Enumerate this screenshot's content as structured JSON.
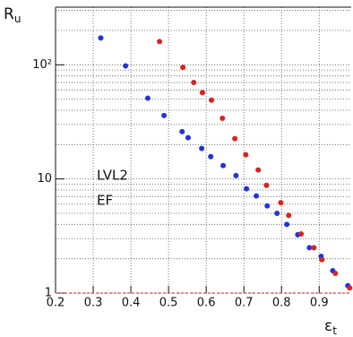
{
  "chart_data": {
    "type": "scatter",
    "log_y": true,
    "grid": true,
    "y_label": {
      "text": "R",
      "sub": "u"
    },
    "x_label": {
      "text": "ε",
      "sub": "t"
    },
    "xlim": [
      0.2,
      0.985
    ],
    "xticks": [
      0.2,
      0.3,
      0.4,
      0.5,
      0.6,
      0.7,
      0.8,
      0.9
    ],
    "ylim": [
      1,
      320
    ],
    "yticks": [
      1,
      10,
      {
        "value": 100,
        "label": "10²"
      }
    ],
    "series": [
      {
        "name": "LVL2",
        "color": "#2233dd",
        "x": [
          0.32,
          0.386,
          0.445,
          0.488,
          0.536,
          0.552,
          0.588,
          0.612,
          0.645,
          0.679,
          0.707,
          0.733,
          0.762,
          0.788,
          0.814,
          0.843,
          0.874,
          0.905,
          0.936,
          0.976
        ],
        "values": [
          172,
          98,
          51,
          36,
          26,
          23,
          18.5,
          15.7,
          13.1,
          10.7,
          8.2,
          7.1,
          5.8,
          5.0,
          4.0,
          3.25,
          2.5,
          2.1,
          1.57,
          1.16
        ]
      },
      {
        "name": "EF",
        "color": "#dd2222",
        "x": [
          0.476,
          0.538,
          0.567,
          0.59,
          0.614,
          0.643,
          0.676,
          0.705,
          0.738,
          0.76,
          0.798,
          0.819,
          0.852,
          0.886,
          0.907,
          0.943,
          0.981
        ],
        "values": [
          160,
          95,
          70,
          57,
          49,
          34,
          22.6,
          16.3,
          12,
          8.8,
          6.2,
          4.8,
          3.3,
          2.5,
          1.96,
          1.49,
          1.11
        ]
      }
    ]
  }
}
